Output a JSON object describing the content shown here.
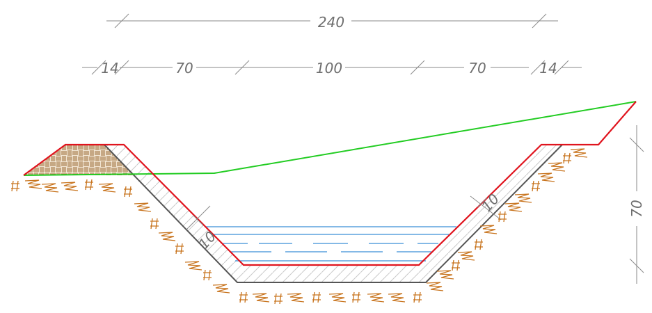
{
  "dimensions": {
    "overall": "240",
    "segments": [
      "14",
      "70",
      "100",
      "70",
      "14"
    ],
    "depth": "70",
    "lining_left": "10",
    "lining_right": "10"
  },
  "colors": {
    "design_profile": "#e0141e",
    "ground_line": "#22cc22",
    "excavation": "#555555",
    "water": "#3a8fd8",
    "soil_hatch": "#c8741e",
    "dimension": "#8a8a8a",
    "fill_hatch": "#b07a3a"
  },
  "icons": {
    "soil": "soil-hatch-icon",
    "fill": "basket-weave-fill-icon"
  }
}
